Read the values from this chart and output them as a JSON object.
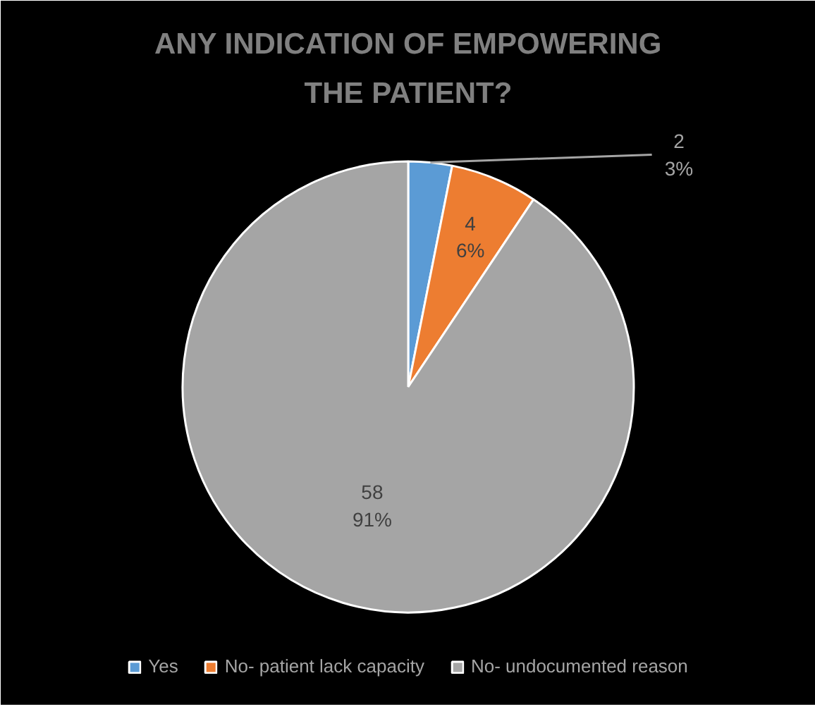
{
  "chart_data": {
    "type": "pie",
    "title": "ANY INDICATION OF EMPOWERING THE PATIENT?",
    "categories": [
      "Yes",
      "No- patient lack capacity",
      "No- undocumented reason"
    ],
    "values": [
      2,
      4,
      58
    ],
    "colors": [
      "#5b9bd5",
      "#ed7d31",
      "#a5a5a5"
    ],
    "value_labels": [
      "2\n3%",
      "4\n6%",
      "58\n91%"
    ],
    "legend": "bottom"
  }
}
